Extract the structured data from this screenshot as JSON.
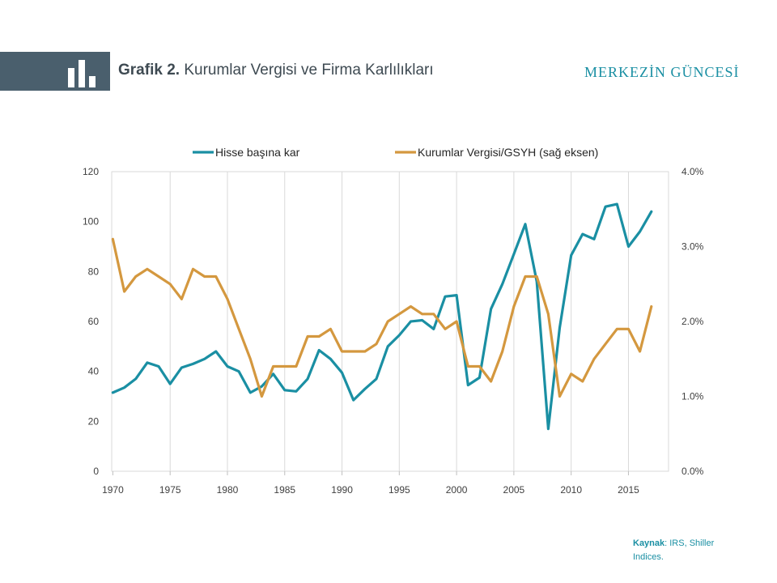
{
  "header": {
    "title_bold": "Grafik 2.",
    "title_rest": "Kurumlar Vergisi ve Firma Karlılıkları",
    "brand": "MERKEZİN GÜNCESİ",
    "icon": "bar-chart-icon",
    "band_color": "#4a5f6d",
    "brand_color": "#1a8fa3"
  },
  "source": {
    "label": "Kaynak",
    "text": ": IRS, Shiller Indices."
  },
  "chart_data": {
    "type": "line",
    "title": "",
    "legend_position": "top",
    "grid": "vertical",
    "x": [
      1970,
      1971,
      1972,
      1973,
      1974,
      1975,
      1976,
      1977,
      1978,
      1979,
      1980,
      1981,
      1982,
      1983,
      1984,
      1985,
      1986,
      1987,
      1988,
      1989,
      1990,
      1991,
      1992,
      1993,
      1994,
      1995,
      1996,
      1997,
      1998,
      1999,
      2000,
      2001,
      2002,
      2003,
      2004,
      2005,
      2006,
      2007,
      2008,
      2009,
      2010,
      2011,
      2012,
      2013,
      2014,
      2015,
      2016,
      2017
    ],
    "x_ticks": [
      1970,
      1975,
      1980,
      1985,
      1990,
      1995,
      2000,
      2005,
      2010,
      2015
    ],
    "left_axis": {
      "min": 0,
      "max": 120,
      "ticks": [
        "0",
        "20",
        "40",
        "60",
        "80",
        "100",
        "120"
      ]
    },
    "right_axis": {
      "min": 0,
      "max": 4.0,
      "ticks": [
        "0.0%",
        "1.0%",
        "2.0%",
        "3.0%",
        "4.0%"
      ]
    },
    "series": [
      {
        "name": "Hisse başına kar",
        "axis": "left",
        "color": "#1a8fa3",
        "values": [
          31.5,
          33.5,
          37,
          43.5,
          42,
          35,
          41.5,
          43,
          45,
          48,
          42,
          40,
          31.5,
          34,
          39,
          32.5,
          32,
          37,
          48.5,
          45,
          39.5,
          28.5,
          33,
          37,
          50,
          54.5,
          60,
          60.5,
          57,
          70,
          70.5,
          34.5,
          37.5,
          65,
          75,
          87,
          99,
          76,
          17,
          57.5,
          86.5,
          95,
          93,
          106,
          107,
          90,
          96,
          104
        ]
      },
      {
        "name": "Kurumlar Vergisi/GSYH (sağ eksen)",
        "axis": "right",
        "color": "#d4983f",
        "values": [
          3.1,
          2.4,
          2.6,
          2.7,
          2.6,
          2.5,
          2.3,
          2.7,
          2.6,
          2.6,
          2.3,
          1.9,
          1.5,
          1.0,
          1.4,
          1.4,
          1.4,
          1.8,
          1.8,
          1.9,
          1.6,
          1.6,
          1.6,
          1.7,
          2.0,
          2.1,
          2.2,
          2.1,
          2.1,
          1.9,
          2.0,
          1.4,
          1.4,
          1.2,
          1.6,
          2.2,
          2.6,
          2.6,
          2.1,
          1.0,
          1.3,
          1.2,
          1.5,
          1.7,
          1.9,
          1.9,
          1.6,
          2.2
        ]
      }
    ]
  }
}
